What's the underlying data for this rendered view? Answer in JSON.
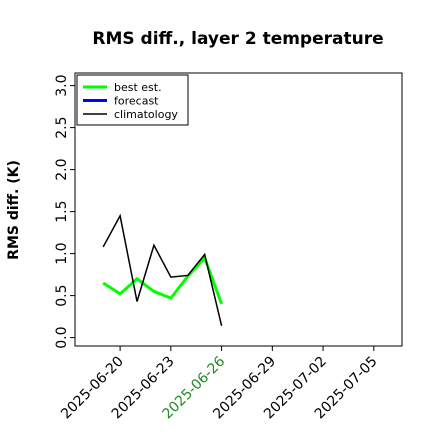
{
  "chart_data": {
    "type": "line",
    "title": "RMS diff., layer 2 temperature",
    "ylabel": "RMS diff. (K)",
    "x": [
      "2025-06-19",
      "2025-06-20",
      "2025-06-21",
      "2025-06-22",
      "2025-06-23",
      "2025-06-24",
      "2025-06-25",
      "2025-06-26"
    ],
    "series": [
      {
        "name": "best est.",
        "color": "#00ff00",
        "width": 3,
        "values": [
          0.65,
          0.52,
          0.7,
          0.55,
          0.47,
          0.73,
          0.95,
          0.4
        ]
      },
      {
        "name": "forecast",
        "color": "#0000ff",
        "width": 3,
        "values": [
          null,
          null,
          null,
          null,
          null,
          null,
          null,
          null
        ]
      },
      {
        "name": "climatology",
        "color": "#000000",
        "width": 1.5,
        "values": [
          1.08,
          1.45,
          0.43,
          1.1,
          0.72,
          0.74,
          0.99,
          0.14
        ]
      }
    ],
    "xlim": [
      "2025-06-17T08:00Z",
      "2025-07-06T16:00Z"
    ],
    "xticks": [
      "2025-06-20",
      "2025-06-23",
      "2025-06-26",
      "2025-06-29",
      "2025-07-02",
      "2025-07-05"
    ],
    "xtick_colors": [
      "#000000",
      "#000000",
      "#228b22",
      "#000000",
      "#000000",
      "#000000"
    ],
    "ylim": [
      -0.1,
      3.15
    ],
    "yticks": [
      {
        "value": 0,
        "label": "0.0"
      },
      {
        "value": 0.5,
        "label": "0.5"
      },
      {
        "value": 1,
        "label": "1.0"
      },
      {
        "value": 1.5,
        "label": "1.5"
      },
      {
        "value": 2,
        "label": "2.0"
      },
      {
        "value": 2.5,
        "label": "2.5"
      },
      {
        "value": 3,
        "label": "3.0"
      }
    ],
    "legend": "upper left",
    "grid": false
  }
}
